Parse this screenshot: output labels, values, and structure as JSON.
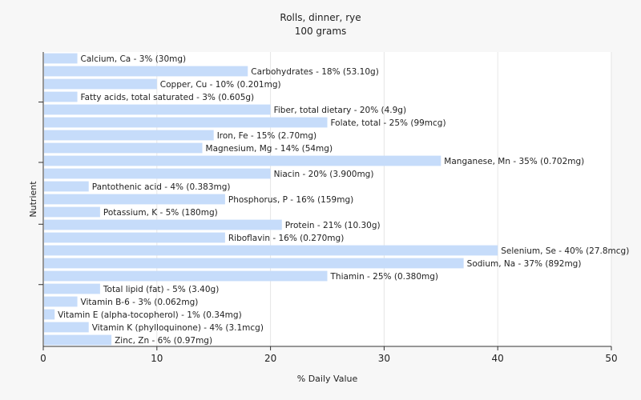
{
  "chart_data": {
    "type": "bar",
    "orientation": "horizontal",
    "title": "Rolls, dinner, rye",
    "subtitle": "100 grams",
    "xlabel": "% Daily Value",
    "ylabel": "Nutrient",
    "xlim": [
      0,
      50
    ],
    "xticks": [
      0,
      10,
      20,
      30,
      40,
      50
    ],
    "grid": true,
    "bar_color": "#c6dcfa",
    "background_color": "#ffffff",
    "categories": [
      "Calcium, Ca",
      "Carbohydrates",
      "Copper, Cu",
      "Fatty acids, total saturated",
      "Fiber, total dietary",
      "Folate, total",
      "Iron, Fe",
      "Magnesium, Mg",
      "Manganese, Mn",
      "Niacin",
      "Pantothenic acid",
      "Phosphorus, P",
      "Potassium, K",
      "Protein",
      "Riboflavin",
      "Selenium, Se",
      "Sodium, Na",
      "Thiamin",
      "Total lipid (fat)",
      "Vitamin B-6",
      "Vitamin E (alpha-tocopherol)",
      "Vitamin K (phylloquinone)",
      "Zinc, Zn"
    ],
    "values": [
      3,
      18,
      10,
      3,
      20,
      25,
      15,
      14,
      35,
      20,
      4,
      16,
      5,
      21,
      16,
      40,
      37,
      25,
      5,
      3,
      1,
      4,
      6
    ],
    "labels": [
      "Calcium, Ca - 3% (30mg)",
      "Carbohydrates - 18% (53.10g)",
      "Copper, Cu - 10% (0.201mg)",
      "Fatty acids, total saturated - 3% (0.605g)",
      "Fiber, total dietary - 20% (4.9g)",
      "Folate, total - 25% (99mcg)",
      "Iron, Fe - 15% (2.70mg)",
      "Magnesium, Mg - 14% (54mg)",
      "Manganese, Mn - 35% (0.702mg)",
      "Niacin - 20% (3.900mg)",
      "Pantothenic acid - 4% (0.383mg)",
      "Phosphorus, P - 16% (159mg)",
      "Potassium, K - 5% (180mg)",
      "Protein - 21% (10.30g)",
      "Riboflavin - 16% (0.270mg)",
      "Selenium, Se - 40% (27.8mcg)",
      "Sodium, Na - 37% (892mg)",
      "Thiamin - 25% (0.380mg)",
      "Total lipid (fat) - 5% (3.40g)",
      "Vitamin B-6 - 3% (0.062mg)",
      "Vitamin E (alpha-tocopherol) - 1% (0.34mg)",
      "Vitamin K (phylloquinone) - 4% (3.1mcg)",
      "Zinc, Zn - 6% (0.97mg)"
    ]
  }
}
